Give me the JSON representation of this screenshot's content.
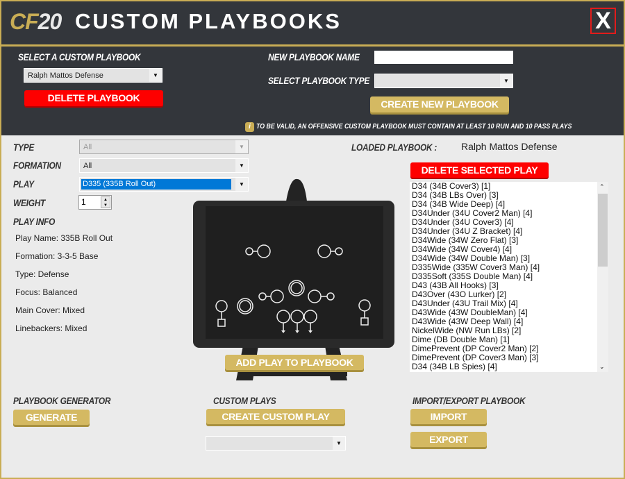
{
  "header": {
    "logo_cf": "CF",
    "logo_num": "20",
    "title": "CUSTOM PLAYBOOKS",
    "close_label": "X"
  },
  "top": {
    "select_label": "SELECT A CUSTOM PLAYBOOK",
    "selected_playbook": "Ralph Mattos Defense",
    "delete_playbook": "DELETE PLAYBOOK",
    "new_name_label": "NEW PLAYBOOK NAME",
    "new_name_value": "",
    "type_label": "SELECT PLAYBOOK TYPE",
    "type_value": "",
    "create_new": "CREATE NEW PLAYBOOK",
    "notice": "TO BE VALID, AN OFFENSIVE CUSTOM PLAYBOOK MUST CONTAIN AT LEAST 10 RUN AND 10 PASS PLAYS",
    "info_icon": "i"
  },
  "filters": {
    "type_label": "TYPE",
    "type_value": "All",
    "formation_label": "FORMATION",
    "formation_value": "All",
    "play_label": "PLAY",
    "play_value": "D335 (335B Roll Out)",
    "weight_label": "WEIGHT",
    "weight_value": "1"
  },
  "play_info": {
    "heading": "PLAY INFO",
    "lines": [
      "Play Name: 335B Roll Out",
      "Formation: 3-3-5 Base",
      "Type: Defense",
      "Focus: Balanced",
      "Main Cover: Mixed",
      "Linebackers: Mixed"
    ]
  },
  "add_play": "ADD PLAY TO PLAYBOOK",
  "loaded": {
    "label": "LOADED PLAYBOOK :",
    "name": "Ralph Mattos Defense",
    "delete_selected": "DELETE SELECTED PLAY",
    "plays": [
      "D34 (34B Cover3) [1]",
      "D34 (34B LBs Over) [3]",
      "D34 (34B Wide Deep) [4]",
      "D34Under (34U Cover2 Man) [4]",
      "D34Under (34U Cover3) [4]",
      "D34Under (34U Z Bracket) [4]",
      "D34Wide (34W Zero Flat) [3]",
      "D34Wide (34W Cover4) [4]",
      "D34Wide (34W Double Man) [3]",
      "D335Wide (335W Cover3 Man) [4]",
      "D335Soft (335S Double Man) [4]",
      "D43 (43B All Hooks) [3]",
      "D43Over (43O Lurker) [2]",
      "D43Under (43U Trail Mix) [4]",
      "D43Wide (43W DoubleMan) [4]",
      "D43Wide (43W Deep Wall) [4]",
      "NickelWide (NW Run LBs) [2]",
      "Dime (DB Double Man) [1]",
      "DimePrevent (DP Cover2 Man) [2]",
      "DimePrevent (DP Cover3 Man) [3]",
      "D34 (34B LB Spies) [4]"
    ]
  },
  "bottom": {
    "generator_label": "PLAYBOOK GENERATOR",
    "generate": "GENERATE",
    "custom_label": "CUSTOM PLAYS",
    "create_custom": "CREATE CUSTOM PLAY",
    "custom_select_value": "",
    "ie_label": "IMPORT/EXPORT PLAYBOOK",
    "import": "IMPORT",
    "export": "EXPORT"
  },
  "colors": {
    "dark": "#33363b",
    "gold": "#d4b962",
    "red": "#fe0000",
    "selection": "#0078d7"
  }
}
